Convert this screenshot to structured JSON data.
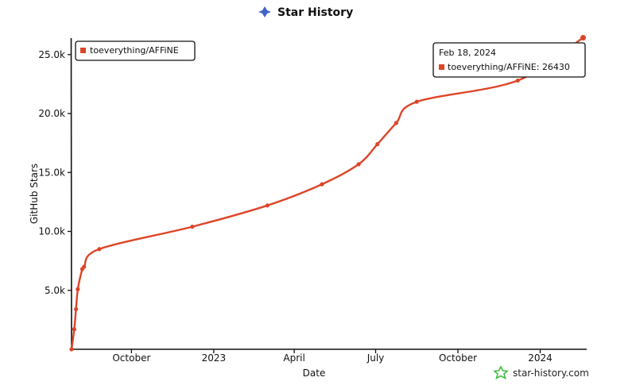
{
  "colors": {
    "series": "#dd4528",
    "title_icon": "#3e63c9",
    "watermark_icon": "#3fbf3f",
    "axis": "#111111"
  },
  "watermark": {
    "icon": "star-icon",
    "text": "star-history.com"
  },
  "title_icon": "sparkle-icon",
  "chart_data": {
    "type": "line",
    "title": "Star History",
    "xlabel": "Date",
    "ylabel": "GitHub Stars",
    "x_range": [
      "2022-07-26",
      "2024-02-22"
    ],
    "ylim": [
      0,
      26600
    ],
    "x_ticks": [
      {
        "date": "2022-10-01",
        "label": "October"
      },
      {
        "date": "2023-01-01",
        "label": "2023"
      },
      {
        "date": "2023-04-01",
        "label": "April"
      },
      {
        "date": "2023-07-01",
        "label": "July"
      },
      {
        "date": "2023-10-01",
        "label": "October"
      },
      {
        "date": "2024-01-01",
        "label": "2024"
      }
    ],
    "y_ticks": [
      {
        "value": 5000,
        "label": "5.0k"
      },
      {
        "value": 10000,
        "label": "10.0k"
      },
      {
        "value": 15000,
        "label": "15.0k"
      },
      {
        "value": 20000,
        "label": "20.0k"
      },
      {
        "value": 25000,
        "label": "25.0k"
      }
    ],
    "grid": false,
    "legend": {
      "position": "top-left",
      "entries": [
        "toeverything/AFFiNE"
      ]
    },
    "series": [
      {
        "name": "toeverything/AFFiNE",
        "points": [
          {
            "x": "2022-07-26",
            "y": 0
          },
          {
            "x": "2022-07-29",
            "y": 1700
          },
          {
            "x": "2022-07-31",
            "y": 3400
          },
          {
            "x": "2022-08-02",
            "y": 5100
          },
          {
            "x": "2022-08-07",
            "y": 6800
          },
          {
            "x": "2022-08-09",
            "y": 7000
          },
          {
            "x": "2022-08-26",
            "y": 8500
          },
          {
            "x": "2022-12-08",
            "y": 10400
          },
          {
            "x": "2023-03-02",
            "y": 12200
          },
          {
            "x": "2023-05-02",
            "y": 14000
          },
          {
            "x": "2023-06-12",
            "y": 15700
          },
          {
            "x": "2023-07-03",
            "y": 17400
          },
          {
            "x": "2023-07-24",
            "y": 19200
          },
          {
            "x": "2023-08-16",
            "y": 21000
          },
          {
            "x": "2023-12-07",
            "y": 22800
          },
          {
            "x": "2024-02-18",
            "y": 26430
          }
        ]
      }
    ],
    "tooltip": {
      "date": "Feb 18, 2024",
      "label": "toeverything/AFFiNE: 26430"
    }
  }
}
